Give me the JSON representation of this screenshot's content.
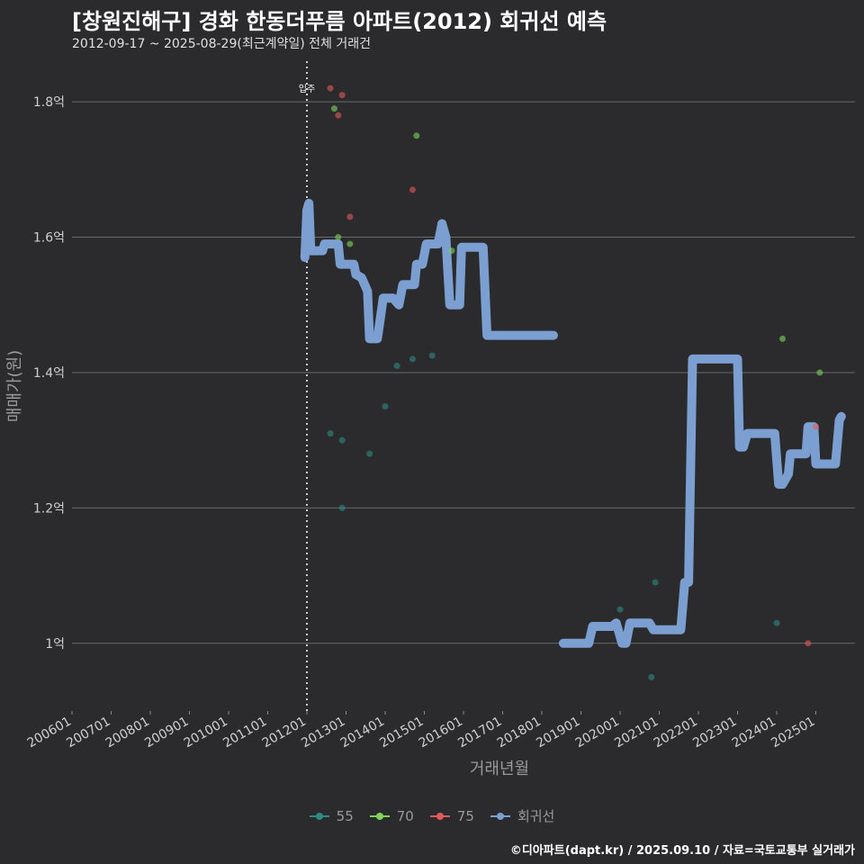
{
  "header": {
    "title": "[창원진해구] 경화 한동더푸름 아파트(2012) 회귀선 예측",
    "subtitle": "2012-09-17 ~ 2025-08-29(최근계약일) 전체 거래건"
  },
  "footer": {
    "credit": "©디아파트(dapt.kr) / 2025.09.10 / 자료=국토교통부 실거래가"
  },
  "legend": {
    "items": [
      {
        "label": "55",
        "color": "#2e8b84"
      },
      {
        "label": "70",
        "color": "#7ed35a"
      },
      {
        "label": "75",
        "color": "#e05a5a"
      },
      {
        "label": "회귀선",
        "color": "#7b9fd0"
      }
    ]
  },
  "chart_data": {
    "type": "scatter",
    "title": "[창원진해구] 경화 한동더푸름 아파트(2012) 회귀선 예측",
    "xlabel": "거래년월",
    "ylabel": "매매가(원)",
    "xlim": [
      2006.0,
      2026.0
    ],
    "ylim": [
      0.9,
      1.86
    ],
    "x_ticks": [
      2006,
      2007,
      2008,
      2009,
      2010,
      2011,
      2012,
      2013,
      2014,
      2015,
      2016,
      2017,
      2018,
      2019,
      2020,
      2021,
      2022,
      2023,
      2024,
      2025
    ],
    "x_tick_labels": [
      "200601",
      "200701",
      "200801",
      "200901",
      "201001",
      "201101",
      "201201",
      "201301",
      "201401",
      "201501",
      "201601",
      "201701",
      "201801",
      "201901",
      "202001",
      "202101",
      "202201",
      "202301",
      "202401",
      "202501"
    ],
    "y_ticks": [
      1.0,
      1.2,
      1.4,
      1.6,
      1.8
    ],
    "y_tick_labels": [
      "1억",
      "1.2억",
      "1.4억",
      "1.6억",
      "1.8억"
    ],
    "vline": {
      "x": 2012.0,
      "label": "입주"
    },
    "series": [
      {
        "name": "55",
        "color": "#2e8b84",
        "points": [
          [
            2012.6,
            1.31
          ],
          [
            2012.9,
            1.3
          ],
          [
            2012.9,
            1.2
          ],
          [
            2013.6,
            1.28
          ],
          [
            2014.0,
            1.35
          ],
          [
            2014.3,
            1.41
          ],
          [
            2014.7,
            1.42
          ],
          [
            2015.2,
            1.425
          ],
          [
            2020.0,
            1.05
          ],
          [
            2020.9,
            1.09
          ],
          [
            2020.8,
            0.95
          ],
          [
            2024.0,
            1.03
          ]
        ]
      },
      {
        "name": "70",
        "color": "#7ed35a",
        "points": [
          [
            2012.7,
            1.79
          ],
          [
            2012.8,
            1.6
          ],
          [
            2013.1,
            1.59
          ],
          [
            2014.8,
            1.75
          ],
          [
            2015.7,
            1.58
          ],
          [
            2024.15,
            1.45
          ],
          [
            2025.1,
            1.4
          ]
        ]
      },
      {
        "name": "75",
        "color": "#e05a5a",
        "points": [
          [
            2012.6,
            1.82
          ],
          [
            2012.9,
            1.81
          ],
          [
            2012.8,
            1.78
          ],
          [
            2013.1,
            1.63
          ],
          [
            2014.7,
            1.67
          ],
          [
            2024.8,
            1.0
          ],
          [
            2025.0,
            1.32
          ]
        ]
      },
      {
        "name": "회귀선",
        "color": "#7b9fd0",
        "points": [
          [
            2011.95,
            1.57
          ],
          [
            2012.0,
            1.64
          ],
          [
            2012.05,
            1.65
          ],
          [
            2012.1,
            1.58
          ],
          [
            2012.4,
            1.58
          ],
          [
            2012.45,
            1.59
          ],
          [
            2012.8,
            1.59
          ],
          [
            2012.85,
            1.56
          ],
          [
            2013.2,
            1.56
          ],
          [
            2013.25,
            1.545
          ],
          [
            2013.4,
            1.54
          ],
          [
            2013.55,
            1.52
          ],
          [
            2013.6,
            1.45
          ],
          [
            2013.8,
            1.45
          ],
          [
            2013.85,
            1.47
          ],
          [
            2013.95,
            1.51
          ],
          [
            2014.2,
            1.51
          ],
          [
            2014.35,
            1.5
          ],
          [
            2014.45,
            1.53
          ],
          [
            2014.75,
            1.53
          ],
          [
            2014.8,
            1.56
          ],
          [
            2014.95,
            1.56
          ],
          [
            2015.05,
            1.59
          ],
          [
            2015.35,
            1.59
          ],
          [
            2015.45,
            1.62
          ],
          [
            2015.55,
            1.6
          ],
          [
            2015.65,
            1.5
          ],
          [
            2015.9,
            1.5
          ],
          [
            2015.95,
            1.585
          ],
          [
            2016.5,
            1.585
          ],
          [
            2016.6,
            1.455
          ],
          [
            2018.3,
            1.455
          ]
        ]
      },
      {
        "name": "회귀선",
        "color": "#7b9fd0",
        "points": [
          [
            2018.55,
            1.0
          ],
          [
            2019.2,
            1.0
          ],
          [
            2019.3,
            1.025
          ],
          [
            2019.8,
            1.025
          ],
          [
            2019.9,
            1.03
          ],
          [
            2020.05,
            1.0
          ],
          [
            2020.15,
            1.0
          ],
          [
            2020.25,
            1.03
          ],
          [
            2020.75,
            1.03
          ],
          [
            2020.85,
            1.02
          ],
          [
            2021.55,
            1.02
          ],
          [
            2021.65,
            1.09
          ],
          [
            2021.75,
            1.09
          ],
          [
            2021.85,
            1.42
          ],
          [
            2022.7,
            1.42
          ],
          [
            2022.85,
            1.42
          ],
          [
            2023.0,
            1.42
          ],
          [
            2023.05,
            1.29
          ],
          [
            2023.15,
            1.29
          ],
          [
            2023.25,
            1.31
          ],
          [
            2023.95,
            1.31
          ],
          [
            2024.05,
            1.235
          ],
          [
            2024.15,
            1.235
          ],
          [
            2024.3,
            1.25
          ],
          [
            2024.35,
            1.28
          ],
          [
            2024.75,
            1.28
          ],
          [
            2024.8,
            1.32
          ],
          [
            2024.95,
            1.32
          ],
          [
            2025.0,
            1.265
          ],
          [
            2025.5,
            1.265
          ],
          [
            2025.6,
            1.33
          ],
          [
            2025.65,
            1.335
          ]
        ]
      }
    ]
  }
}
